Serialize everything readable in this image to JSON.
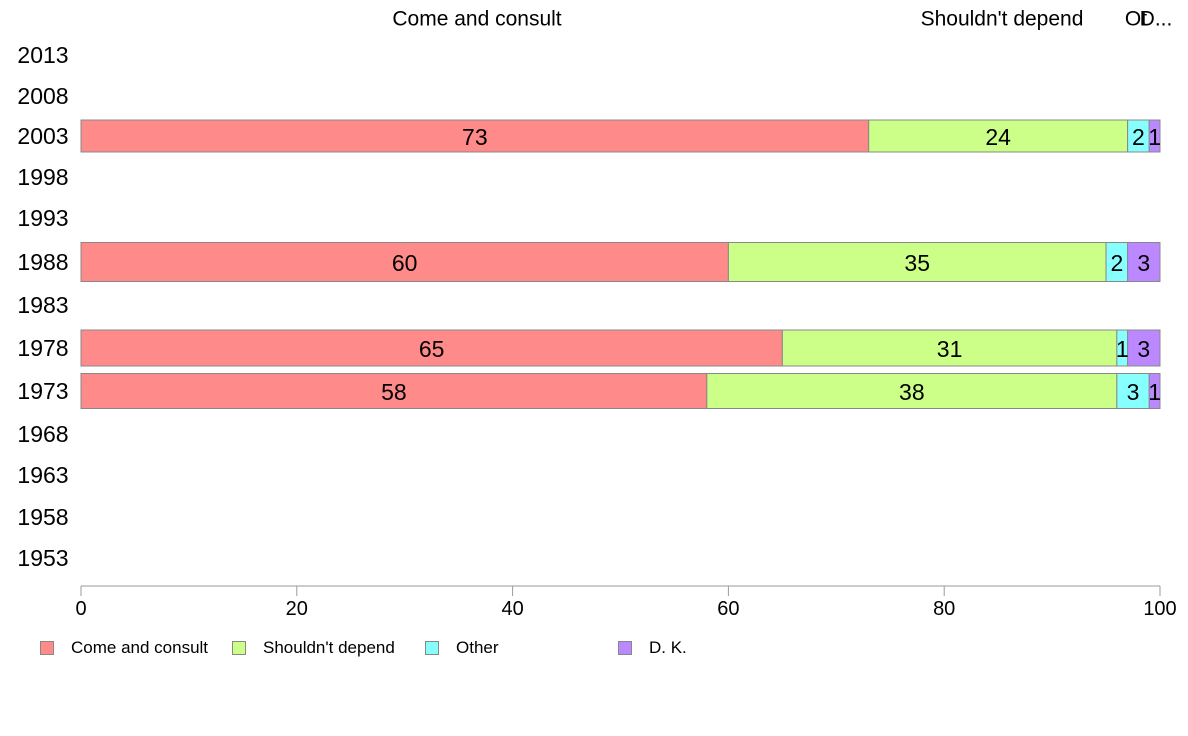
{
  "chart_data": {
    "type": "bar",
    "orientation": "horizontal",
    "stacked": true,
    "categories": [
      "2013",
      "2008",
      "2003",
      "1998",
      "1993",
      "1988",
      "1983",
      "1978",
      "1973",
      "1968",
      "1963",
      "1958",
      "1953"
    ],
    "series": [
      {
        "name": "Come and consult",
        "color": "#FF8A8A",
        "values": [
          null,
          null,
          73,
          null,
          null,
          60,
          null,
          65,
          58,
          null,
          null,
          null,
          null
        ]
      },
      {
        "name": "Shouldn't depend",
        "color": "#CCFF88",
        "values": [
          null,
          null,
          24,
          null,
          null,
          35,
          null,
          31,
          38,
          null,
          null,
          null,
          null
        ]
      },
      {
        "name": "Other",
        "color": "#88FFFF",
        "values": [
          null,
          null,
          2,
          null,
          null,
          2,
          null,
          1,
          3,
          null,
          null,
          null,
          null
        ]
      },
      {
        "name": "D. K.",
        "color": "#BB88FF",
        "values": [
          null,
          null,
          1,
          null,
          null,
          3,
          null,
          3,
          1,
          null,
          null,
          null,
          null
        ]
      }
    ],
    "top_labels": [
      "Come and consult",
      "Shouldn't depend",
      "Ot",
      "D..."
    ],
    "xlim": [
      0,
      100
    ],
    "xticks": [
      "0",
      "20",
      "40",
      "60",
      "80",
      "100"
    ],
    "grid": false,
    "legend_position": "bottom"
  }
}
